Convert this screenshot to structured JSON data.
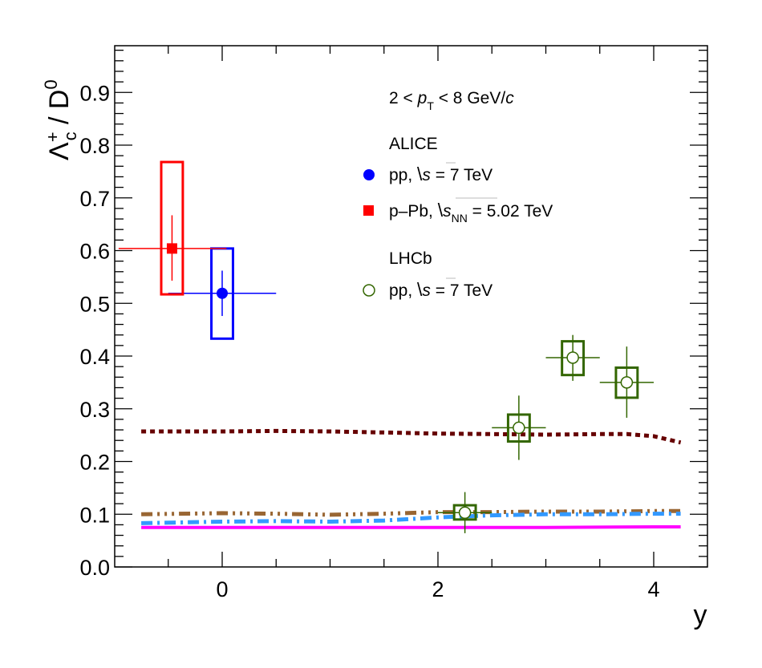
{
  "chart_data": {
    "type": "scatter",
    "title": "",
    "xlabel": "y",
    "ylabel": {
      "main": "Λ",
      "sup": "+",
      "sub": "c",
      "rest": " / D",
      "rest_sup": "0"
    },
    "xlim": [
      -1.0,
      4.5
    ],
    "ylim": [
      0.0,
      0.99
    ],
    "x_ticks": [
      0,
      2,
      4
    ],
    "x_tick_labels": [
      "0",
      "2",
      "4"
    ],
    "y_ticks": [
      0.0,
      0.1,
      0.2,
      0.3,
      0.4,
      0.5,
      0.6,
      0.7,
      0.8,
      0.9
    ],
    "y_tick_labels": [
      "0.0",
      "0.1",
      "0.2",
      "0.3",
      "0.4",
      "0.5",
      "0.6",
      "0.7",
      "0.8",
      "0.9"
    ],
    "grid": false,
    "annotation": {
      "pre": "2 < ",
      "p": "p",
      "p_sub": "T",
      "post": " < 8 GeV/",
      "c": "c"
    },
    "legend_placement": "top-right",
    "legend": {
      "alice_header": "ALICE",
      "lhcb_header": "LHCb",
      "entries": [
        {
          "key": "alice_pp",
          "prefix": "pp, ",
          "sqrt": "s",
          "sqrt_sub": "",
          "suffix": " = 7 TeV",
          "marker": "filled-circle",
          "color": "#0000ff"
        },
        {
          "key": "alice_ppb",
          "prefix": "p–Pb, ",
          "sqrt": "s",
          "sqrt_sub": "NN",
          "suffix": " = 5.02 TeV",
          "marker": "filled-square",
          "color": "#ff0000"
        },
        {
          "key": "lhcb_pp",
          "prefix": "pp, ",
          "sqrt": "s",
          "sqrt_sub": "",
          "suffix": " = 7 TeV",
          "marker": "open-circle",
          "color": "#336600"
        }
      ]
    },
    "series": [
      {
        "name": "ALICE pp, √s = 7 TeV",
        "marker": "filled-circle",
        "color": "#0000ff",
        "points": [
          {
            "x": 0.0,
            "y": 0.519,
            "x_lo": -0.5,
            "x_hi": 0.5,
            "stat_lo": 0.476,
            "stat_hi": 0.562,
            "sys_lo": 0.433,
            "sys_hi": 0.604,
            "sys_x_lo": -0.1,
            "sys_x_hi": 0.1
          }
        ]
      },
      {
        "name": "ALICE p–Pb, √sNN = 5.02 TeV",
        "marker": "filled-square",
        "color": "#ff0000",
        "points": [
          {
            "x": -0.465,
            "y": 0.604,
            "x_lo": -0.96,
            "x_hi": 0.04,
            "stat_lo": 0.543,
            "stat_hi": 0.667,
            "sys_lo": 0.517,
            "sys_hi": 0.768,
            "sys_x_lo": -0.565,
            "sys_x_hi": -0.365
          }
        ]
      },
      {
        "name": "LHCb pp, √s = 7 TeV",
        "marker": "open-circle",
        "color": "#336600",
        "points": [
          {
            "x": 2.25,
            "y": 0.103,
            "x_lo": 2.0,
            "x_hi": 2.5,
            "stat_lo": 0.064,
            "stat_hi": 0.142,
            "sys_lo": 0.09,
            "sys_hi": 0.117,
            "sys_x_lo": 2.15,
            "sys_x_hi": 2.35
          },
          {
            "x": 2.75,
            "y": 0.264,
            "x_lo": 2.5,
            "x_hi": 3.0,
            "stat_lo": 0.203,
            "stat_hi": 0.325,
            "sys_lo": 0.238,
            "sys_hi": 0.289,
            "sys_x_lo": 2.65,
            "sys_x_hi": 2.85
          },
          {
            "x": 3.25,
            "y": 0.397,
            "x_lo": 3.0,
            "x_hi": 3.5,
            "stat_lo": 0.353,
            "stat_hi": 0.44,
            "sys_lo": 0.364,
            "sys_hi": 0.428,
            "sys_x_lo": 3.15,
            "sys_x_hi": 3.35
          },
          {
            "x": 3.75,
            "y": 0.35,
            "x_lo": 3.5,
            "x_hi": 4.0,
            "stat_lo": 0.283,
            "stat_hi": 0.418,
            "sys_lo": 0.321,
            "sys_hi": 0.378,
            "sys_x_lo": 3.65,
            "sys_x_hi": 3.85
          }
        ]
      }
    ],
    "curves": [
      {
        "name": "model-curve-dotted-darkred",
        "color": "#660000",
        "style": "dotted",
        "x": [
          -0.75,
          0.0,
          0.5,
          1.0,
          1.5,
          2.0,
          2.5,
          3.0,
          3.5,
          3.75,
          4.0,
          4.25
        ],
        "y": [
          0.257,
          0.257,
          0.258,
          0.257,
          0.255,
          0.253,
          0.252,
          0.251,
          0.252,
          0.252,
          0.248,
          0.236
        ]
      },
      {
        "name": "model-curve-dashdotdot-brown",
        "color": "#996633",
        "style": "dash-dot-dot",
        "x": [
          -0.75,
          0.0,
          0.5,
          1.0,
          1.5,
          2.0,
          2.5,
          3.0,
          3.5,
          4.0,
          4.25
        ],
        "y": [
          0.1,
          0.102,
          0.101,
          0.099,
          0.101,
          0.104,
          0.104,
          0.105,
          0.105,
          0.106,
          0.106
        ]
      },
      {
        "name": "model-curve-dashdot-blue",
        "color": "#3399ff",
        "style": "dash-dot",
        "x": [
          -0.75,
          0.0,
          0.5,
          1.0,
          1.5,
          2.0,
          2.5,
          3.0,
          3.5,
          4.0,
          4.25
        ],
        "y": [
          0.083,
          0.086,
          0.087,
          0.086,
          0.088,
          0.094,
          0.098,
          0.1,
          0.1,
          0.101,
          0.101
        ]
      },
      {
        "name": "model-curve-solid-magenta",
        "color": "#ff00ff",
        "style": "solid",
        "x": [
          -0.75,
          0.0,
          1.0,
          2.0,
          3.0,
          4.0,
          4.25
        ],
        "y": [
          0.075,
          0.075,
          0.075,
          0.075,
          0.075,
          0.076,
          0.076
        ]
      }
    ]
  }
}
